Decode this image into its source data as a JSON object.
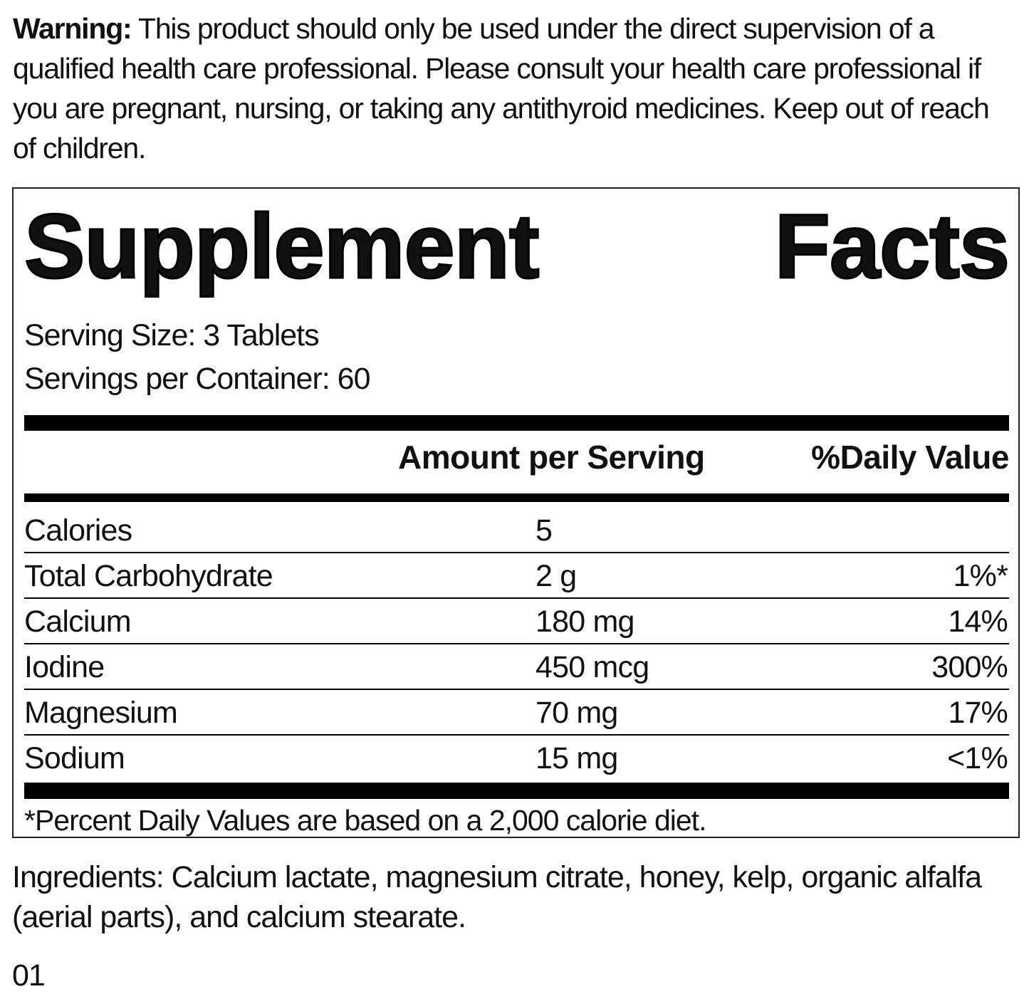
{
  "warning": {
    "label": "Warning:",
    "text": "This product should only be used under the direct supervision of a qualified health care professional. Please consult your health care professional if you are pregnant, nursing, or taking any antithyroid medicines. Keep out of reach of children."
  },
  "facts": {
    "title": "Supplement Facts",
    "serving_size": "Serving Size: 3 Tablets",
    "servings_per_container": "Servings per Container: 60",
    "columns": [
      "Amount per Serving",
      "%Daily Value"
    ],
    "rows": [
      {
        "name": "Calories",
        "amount": "5"
      },
      {
        "name": "Total Carbohydrate",
        "amount": "2 g",
        "dv": "1%*"
      },
      {
        "name": "Calcium",
        "amount": "180 mg",
        "dv": "14%"
      },
      {
        "name": "Iodine",
        "amount": "450 mcg",
        "dv": "300%"
      },
      {
        "name": "Magnesium",
        "amount": "70 mg",
        "dv": "17%"
      },
      {
        "name": "Sodium",
        "amount": "15 mg",
        "dv": "<1%"
      }
    ],
    "footnote": "*Percent Daily Values are based on a 2,000 calorie diet."
  },
  "ingredients": "Ingredients: Calcium lactate, magnesium citrate, honey, kelp, organic alfalfa (aerial parts), and calcium stearate.",
  "code": "01"
}
